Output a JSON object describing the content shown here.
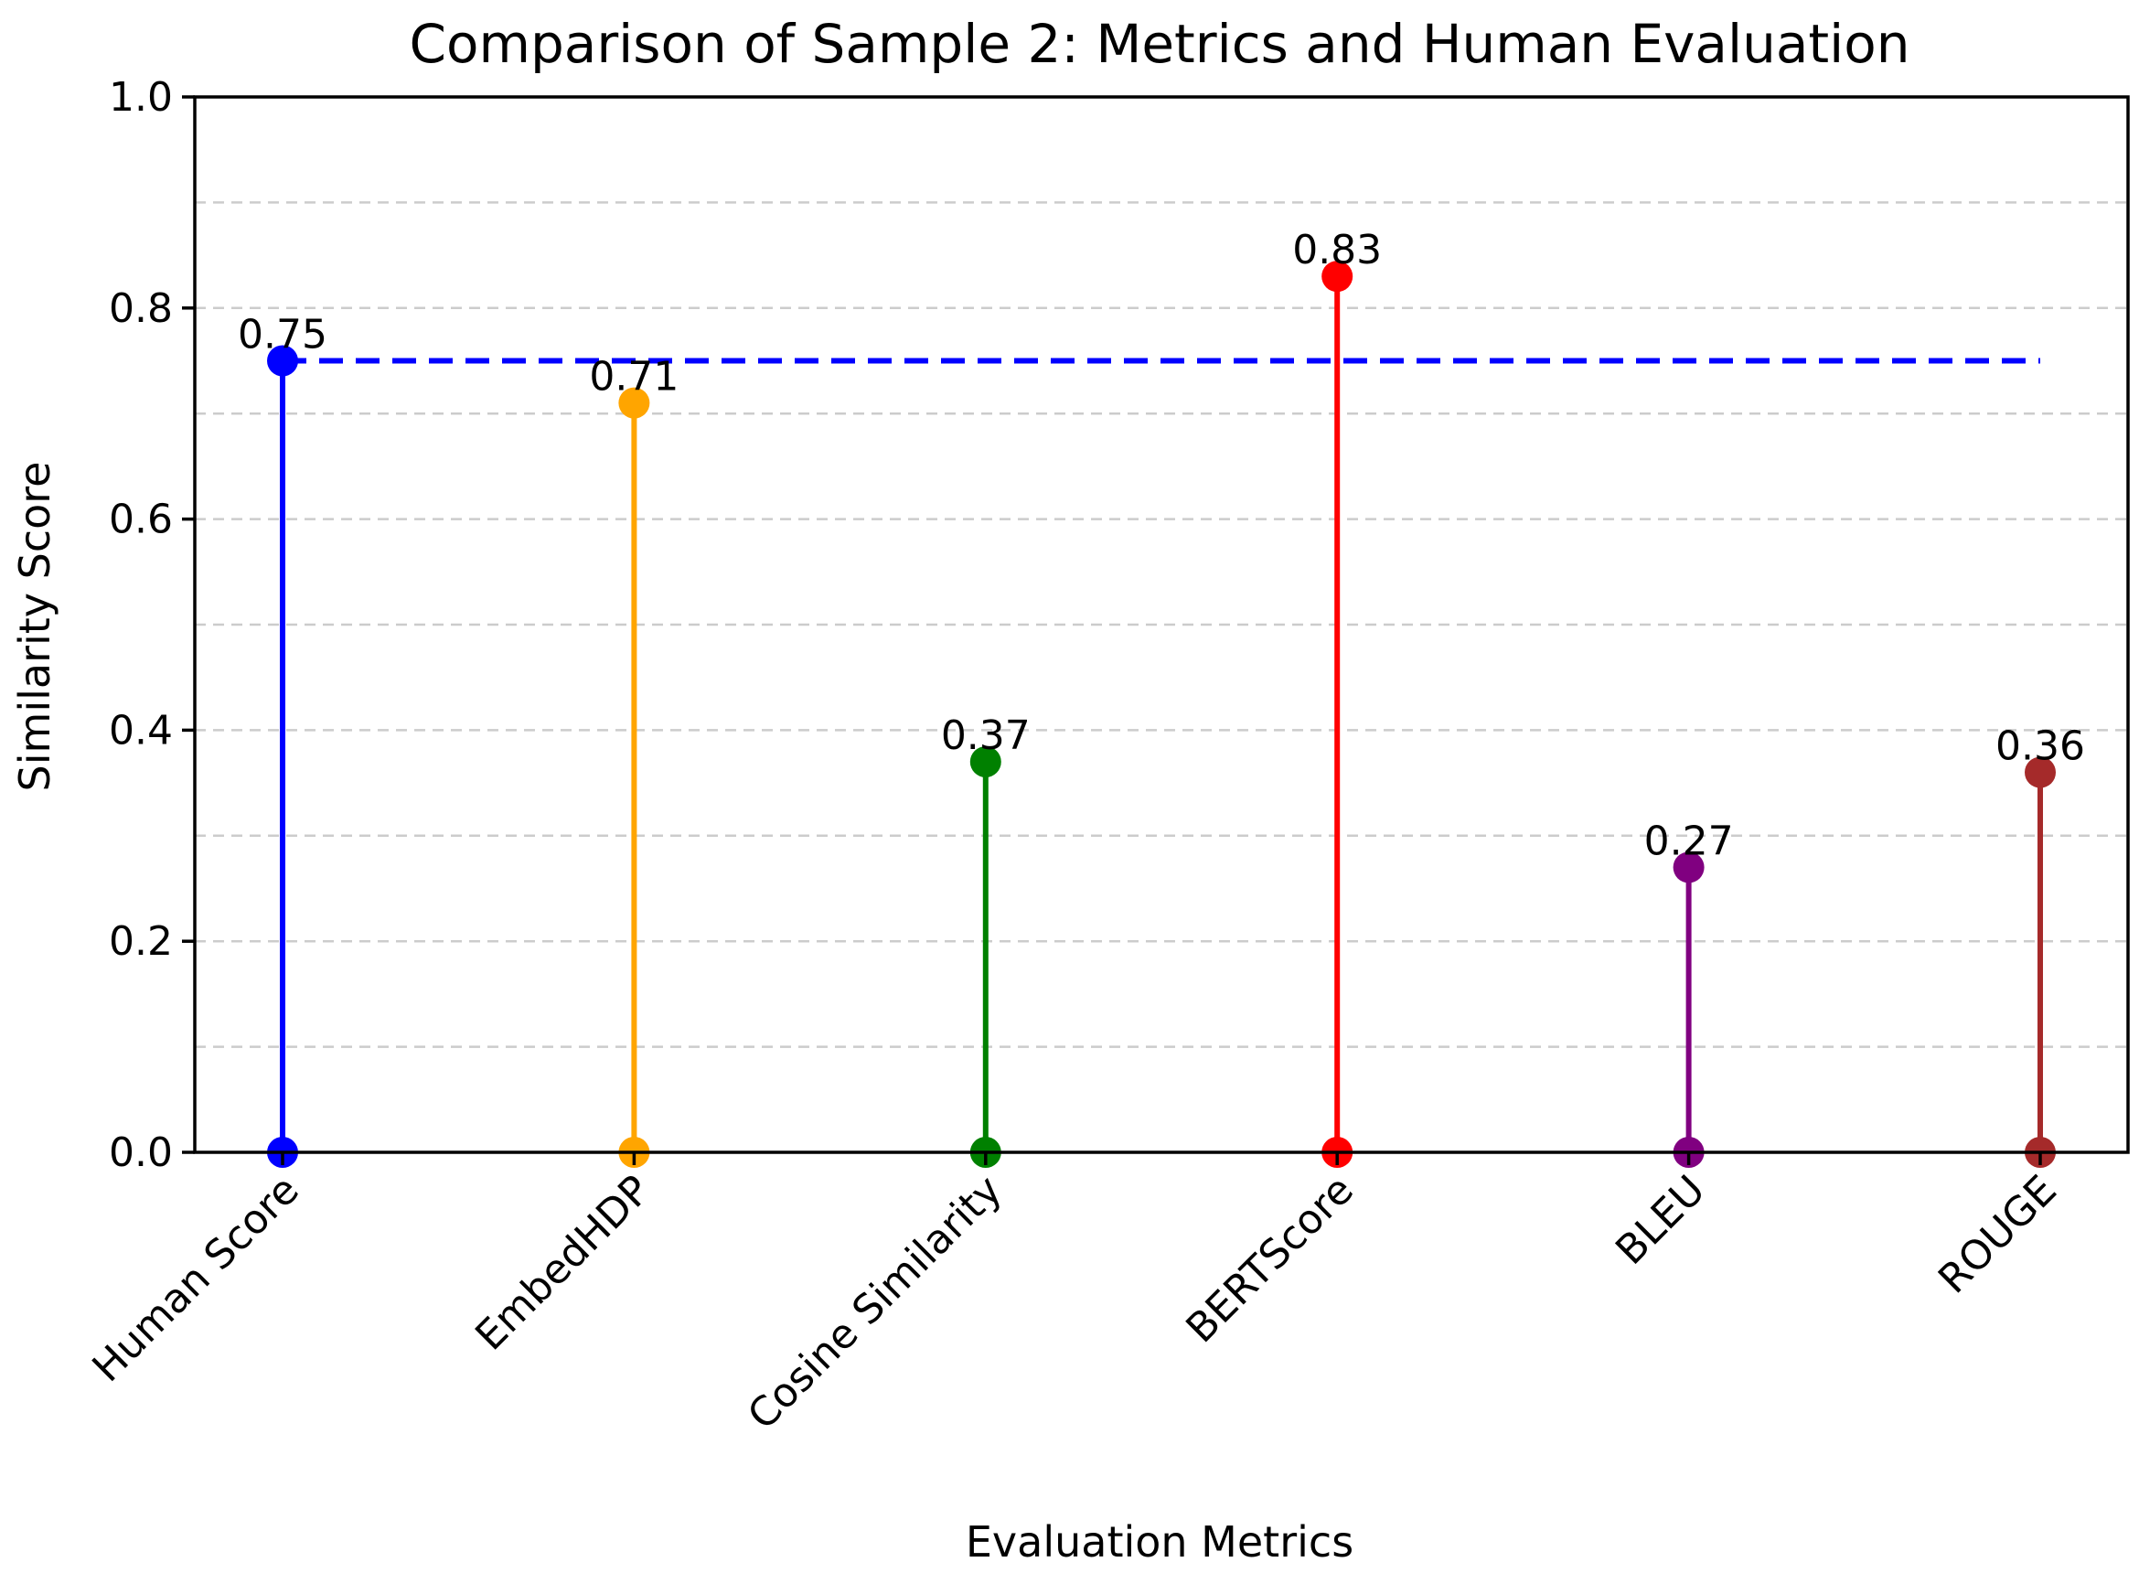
{
  "chart_data": {
    "type": "stem",
    "title": "Comparison of Sample 2: Metrics and Human Evaluation",
    "xlabel": "Evaluation Metrics",
    "ylabel": "Similarity Score",
    "ylim": [
      0,
      1.0
    ],
    "yticks": [
      0.0,
      0.2,
      0.4,
      0.6,
      0.8,
      1.0
    ],
    "ytick_labels": [
      "0.0",
      "0.2",
      "0.4",
      "0.6",
      "0.8",
      "1.0"
    ],
    "grid": true,
    "categories": [
      "Human Score",
      "EmbedHDP",
      "Cosine Similarity",
      "BERTScore",
      "BLEU",
      "ROUGE"
    ],
    "values": [
      0.75,
      0.71,
      0.37,
      0.83,
      0.27,
      0.36
    ],
    "value_labels": [
      "0.75",
      "0.71",
      "0.37",
      "0.83",
      "0.27",
      "0.36"
    ],
    "colors": [
      "#0000ff",
      "#ffa500",
      "#008000",
      "#ff0000",
      "#800080",
      "#a52a2a"
    ],
    "reference_line": {
      "value": 0.75,
      "color": "#0000ff",
      "style": "dashed",
      "from_category": "Human Score",
      "to_category": "ROUGE"
    }
  }
}
